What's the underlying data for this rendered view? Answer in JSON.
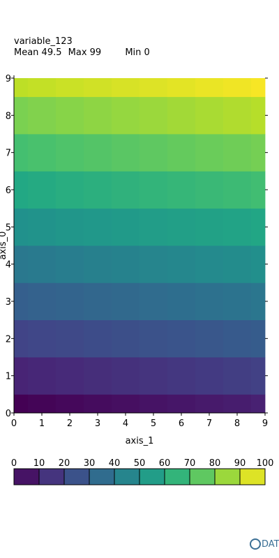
{
  "header": {
    "title": "variable_123",
    "mean_label": "Mean 49.5",
    "max_label": "Max 99",
    "min_label": "Min 0"
  },
  "chart_data": {
    "type": "heatmap",
    "title": "variable_123",
    "xlabel": "axis_1",
    "ylabel": "axis_0",
    "x_ticks": [
      0,
      1,
      2,
      3,
      4,
      5,
      6,
      7,
      8,
      9
    ],
    "y_ticks": [
      0,
      1,
      2,
      3,
      4,
      5,
      6,
      7,
      8,
      9
    ],
    "xlim": [
      0,
      9
    ],
    "ylim": [
      0,
      9
    ],
    "values": [
      [
        0,
        1,
        2,
        3,
        4,
        5,
        6,
        7,
        8,
        9
      ],
      [
        10,
        11,
        12,
        13,
        14,
        15,
        16,
        17,
        18,
        19
      ],
      [
        20,
        21,
        22,
        23,
        24,
        25,
        26,
        27,
        28,
        29
      ],
      [
        30,
        31,
        32,
        33,
        34,
        35,
        36,
        37,
        38,
        39
      ],
      [
        40,
        41,
        42,
        43,
        44,
        45,
        46,
        47,
        48,
        49
      ],
      [
        50,
        51,
        52,
        53,
        54,
        55,
        56,
        57,
        58,
        59
      ],
      [
        60,
        61,
        62,
        63,
        64,
        65,
        66,
        67,
        68,
        69
      ],
      [
        70,
        71,
        72,
        73,
        74,
        75,
        76,
        77,
        78,
        79
      ],
      [
        80,
        81,
        82,
        83,
        84,
        85,
        86,
        87,
        88,
        89
      ],
      [
        90,
        91,
        92,
        93,
        94,
        95,
        96,
        97,
        98,
        99
      ]
    ],
    "colormap": "viridis",
    "colorbar": {
      "range": [
        0,
        100
      ],
      "ticks": [
        0,
        10,
        20,
        30,
        40,
        50,
        60,
        70,
        80,
        90,
        100
      ],
      "placement": "bottom"
    },
    "stats": {
      "mean": 49.5,
      "max": 99,
      "min": 0
    }
  },
  "logo": {
    "text": "DAT"
  }
}
